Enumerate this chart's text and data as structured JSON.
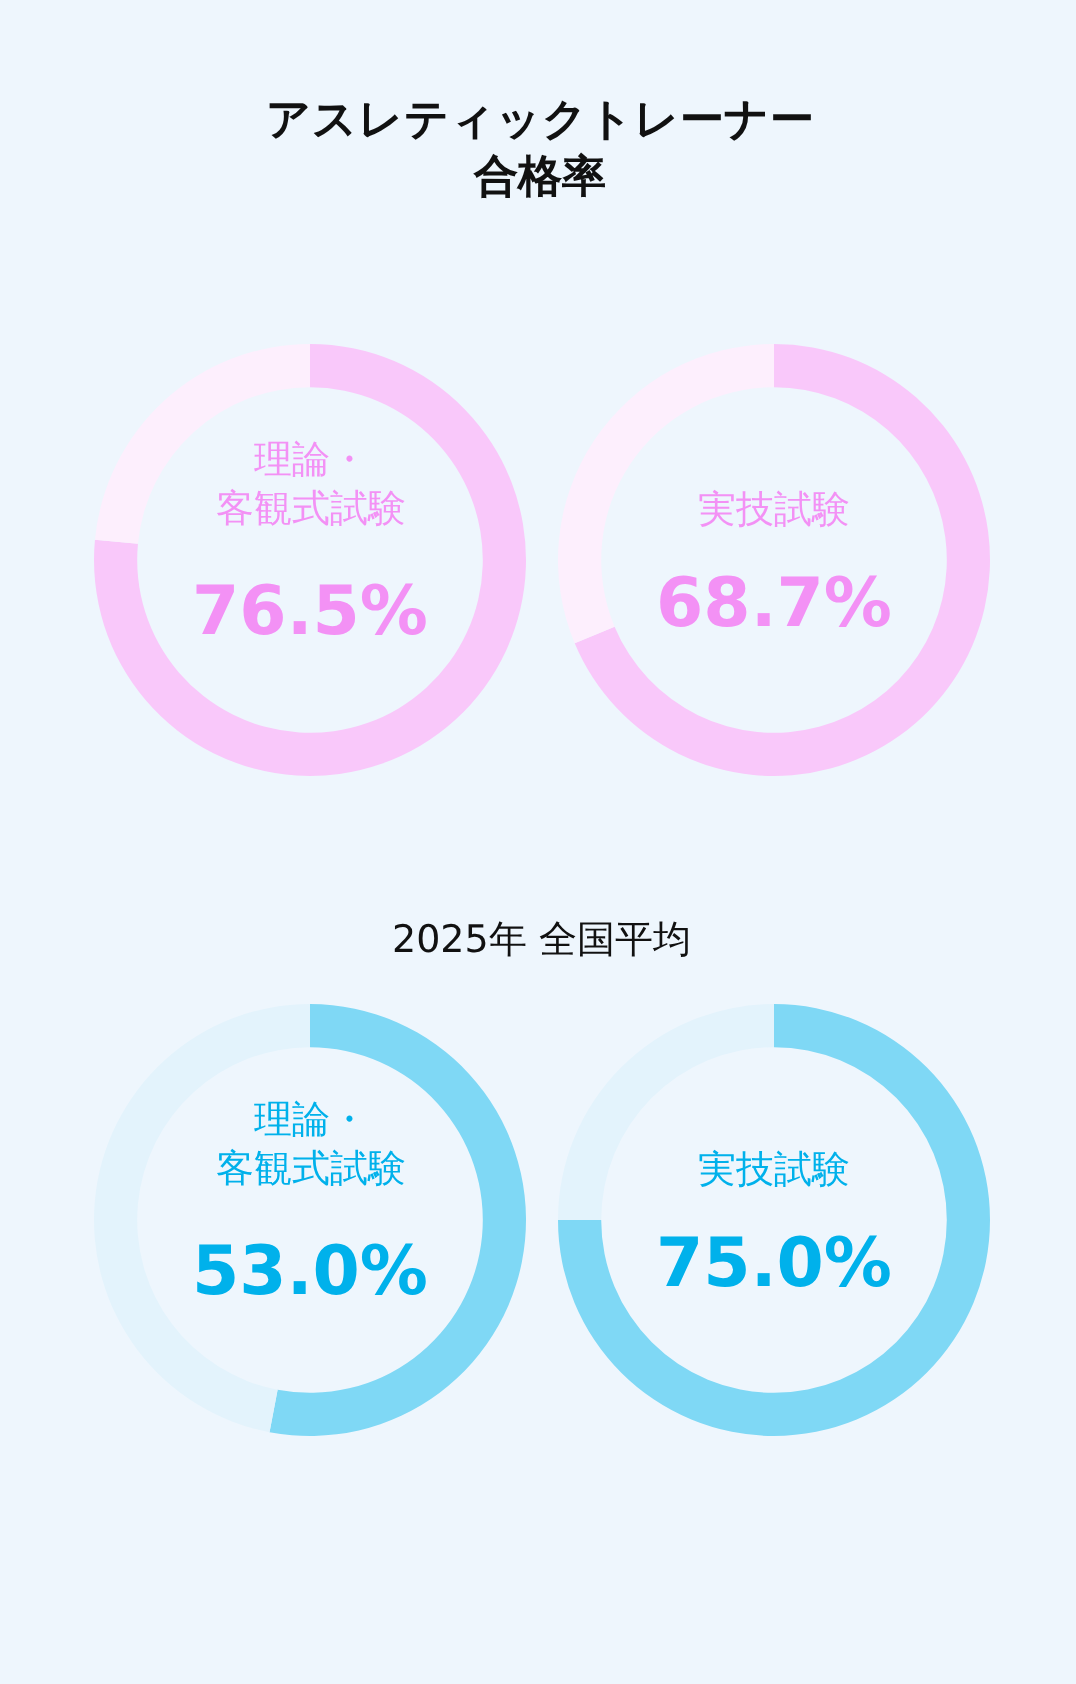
{
  "chart_data": [
    {
      "type": "donut",
      "title": "アスレティックトレーナー合格率",
      "categories": [
        null,
        null
      ],
      "values": [
        76.5,
        23.5
      ],
      "colors": [
        "#f9c8fa",
        "#fdeffd"
      ],
      "value_labels": [
        "76.5%",
        null
      ],
      "annotations": [
        "理論・客観式試験"
      ],
      "legend": false
    },
    {
      "type": "donut",
      "categories": [
        null,
        null
      ],
      "values": [
        68.7,
        31.3
      ],
      "colors": [
        "#f9c8fa",
        "#fdeffd"
      ],
      "value_labels": [
        "68.7%",
        null
      ],
      "annotations": [
        "実技試験"
      ],
      "legend": false
    },
    {
      "type": "donut",
      "title": "2025年 全国平均",
      "categories": [
        null,
        null
      ],
      "values": [
        53.0,
        47.0
      ],
      "colors": [
        "#7fd8f5",
        "#e3f3fc"
      ],
      "value_labels": [
        "53.0%",
        null
      ],
      "annotations": [
        "理論・客観式試験"
      ],
      "legend": false
    },
    {
      "type": "donut",
      "categories": [
        null,
        null
      ],
      "values": [
        75.0,
        25.0
      ],
      "colors": [
        "#7fd8f5",
        "#e3f3fc"
      ],
      "value_labels": [
        "75.0%",
        null
      ],
      "annotations": [
        "実技試験"
      ],
      "legend": false
    }
  ]
}
